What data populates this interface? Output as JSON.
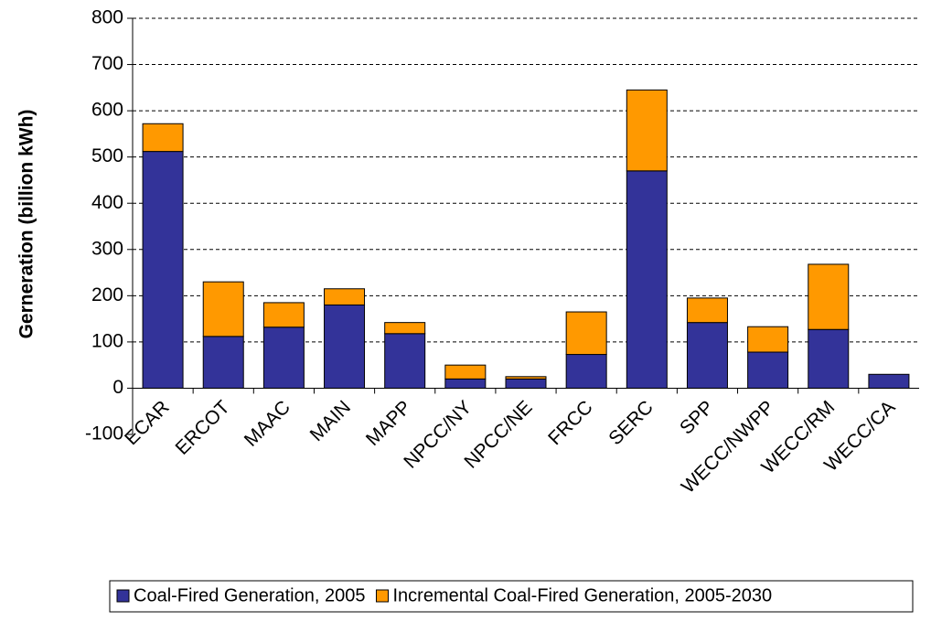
{
  "chart_data": {
    "type": "stacked_bar",
    "y_label": "Gerneration (billion kWh)",
    "categories": [
      "ECAR",
      "ERCOT",
      "MAAC",
      "MAIN",
      "MAPP",
      "NPCC/NY",
      "NPCC/NE",
      "FRCC",
      "SERC",
      "SPP",
      "WECC/NWPP",
      "WECC/RM",
      "WECC/CA"
    ],
    "series": [
      {
        "name": "Coal-Fired Generation, 2005",
        "color": "#333399",
        "values": [
          512,
          112,
          132,
          180,
          118,
          20,
          20,
          73,
          470,
          142,
          78,
          127,
          30
        ]
      },
      {
        "name": "Incremental Coal-Fired Generation, 2005-2030",
        "color": "#ff9900",
        "values": [
          60,
          118,
          53,
          35,
          24,
          30,
          5,
          92,
          175,
          53,
          55,
          141,
          0
        ]
      }
    ],
    "ylim": [
      -100,
      800
    ],
    "yticks": [
      -100,
      0,
      100,
      200,
      300,
      400,
      500,
      600,
      700,
      800
    ],
    "grid": true
  }
}
